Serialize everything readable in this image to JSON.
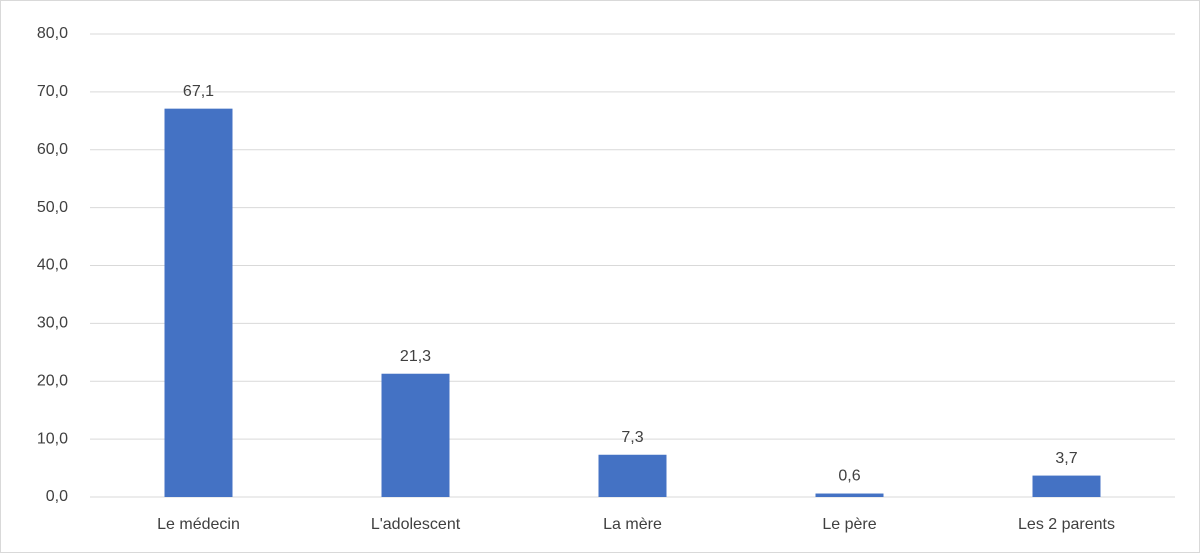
{
  "chart_data": {
    "type": "bar",
    "categories": [
      "Le médecin",
      "L'adolescent",
      "La mère",
      "Le père",
      "Les 2 parents"
    ],
    "values": [
      67.1,
      21.3,
      7.3,
      0.6,
      3.7
    ],
    "value_labels": [
      "67,1",
      "21,3",
      "7,3",
      "0,6",
      "3,7"
    ],
    "color": "#4472c4",
    "ylim": [
      0,
      80
    ],
    "yticks": [
      {
        "value": 0,
        "label": "0,0"
      },
      {
        "value": 10,
        "label": "10,0"
      },
      {
        "value": 20,
        "label": "20,0"
      },
      {
        "value": 30,
        "label": "30,0"
      },
      {
        "value": 40,
        "label": "40,0"
      },
      {
        "value": 50,
        "label": "50,0"
      },
      {
        "value": 60,
        "label": "60,0"
      },
      {
        "value": 70,
        "label": "70,0"
      },
      {
        "value": 80,
        "label": "80,0"
      }
    ],
    "grid": true
  }
}
